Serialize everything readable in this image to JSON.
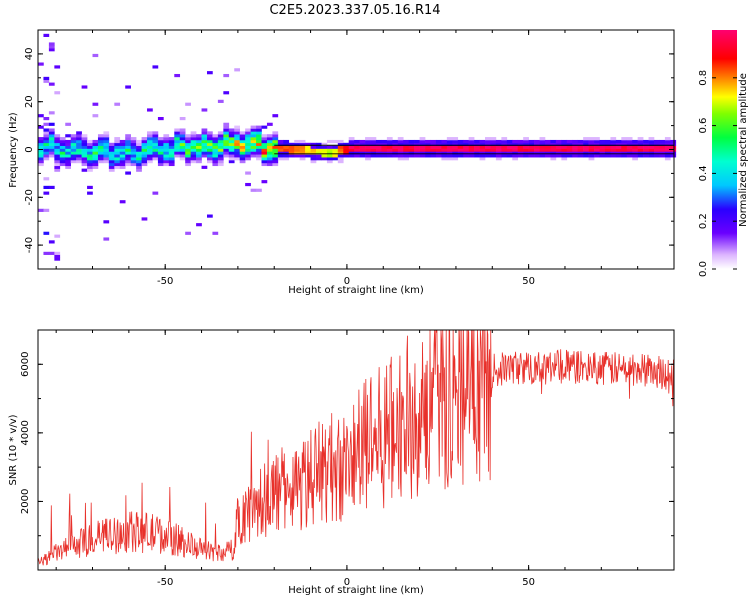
{
  "title": "C2E5.2023.337.05.16.R14",
  "chart_data": [
    {
      "type": "heatmap",
      "xlabel": "Height of straight line (km)",
      "ylabel": "Frequency (Hz)",
      "xlim": [
        -85,
        90
      ],
      "ylim": [
        -50,
        50
      ],
      "xticks": [
        -50,
        0,
        50
      ],
      "yticks": [
        -40,
        -20,
        0,
        20,
        40
      ],
      "colorbar": {
        "label": "Normalized spectral amplitude",
        "range": [
          0.0,
          1.0
        ],
        "ticks": [
          0.0,
          0.2,
          0.4,
          0.6,
          0.8
        ]
      },
      "ridge": {
        "description_points": [
          {
            "x": -85,
            "freq": 0,
            "amp": 0.5
          },
          {
            "x": -60,
            "freq": -2,
            "amp": 0.5
          },
          {
            "x": -40,
            "freq": 1,
            "amp": 0.6
          },
          {
            "x": -30,
            "freq": 2,
            "amp": 0.7
          },
          {
            "x": -20,
            "freq": 0,
            "amp": 0.9
          },
          {
            "x": -5,
            "freq": -2,
            "amp": 0.7
          },
          {
            "x": 0,
            "freq": 0,
            "amp": 1.0
          },
          {
            "x": 90,
            "freq": 0,
            "amp": 1.0
          }
        ]
      }
    },
    {
      "type": "line",
      "xlabel": "Height of straight line (km)",
      "ylabel": "SNR (10 * v/v)",
      "xlim": [
        -85,
        90
      ],
      "ylim": [
        0,
        7000
      ],
      "xticks": [
        -50,
        0,
        50
      ],
      "yticks": [
        2000,
        4000,
        6000
      ],
      "color": "#e8302a",
      "series": [
        {
          "x": [
            -85,
            -80,
            -75,
            -70,
            -65,
            -60,
            -55,
            -50,
            -45,
            -40,
            -35,
            -31,
            -30,
            -25,
            -20,
            -15,
            -10,
            -5,
            0,
            5,
            10,
            15,
            20,
            25,
            30,
            35,
            40,
            45,
            50,
            55,
            60,
            65,
            70,
            75,
            80,
            85,
            90
          ],
          "values": [
            200,
            500,
            700,
            900,
            1000,
            1100,
            1100,
            1000,
            800,
            600,
            500,
            600,
            1600,
            1800,
            2300,
            2400,
            2700,
            3000,
            3000,
            3600,
            3900,
            4300,
            4700,
            5100,
            5400,
            5700,
            5800,
            5900,
            5900,
            5900,
            5950,
            5900,
            5900,
            5850,
            5850,
            5800,
            5700
          ]
        }
      ]
    }
  ]
}
